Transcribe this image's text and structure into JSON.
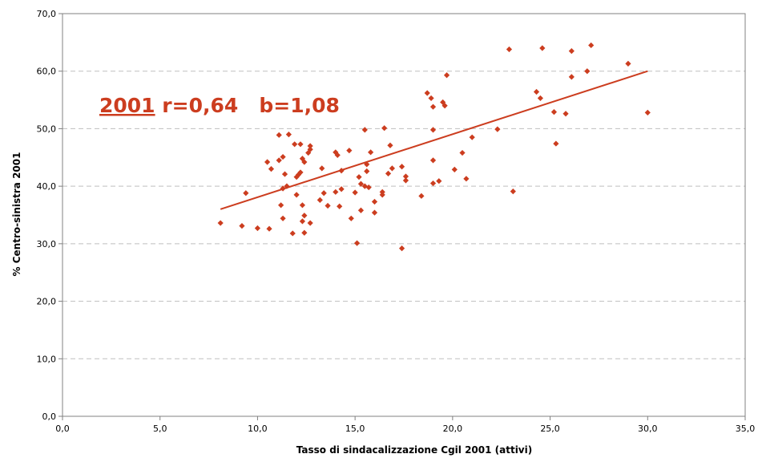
{
  "chart_data": {
    "type": "scatter",
    "title": "",
    "xlabel": "Tasso di sindacalizzazione Cgil 2001 (attivi)",
    "ylabel": "% Centro-sinistra 2001",
    "xlim": [
      0,
      35
    ],
    "ylim": [
      0,
      70
    ],
    "x_ticks": [
      "0,0",
      "5,0",
      "10,0",
      "15,0",
      "20,0",
      "25,0",
      "30,0",
      "35,0"
    ],
    "y_ticks": [
      "0,0",
      "10,0",
      "20,0",
      "30,0",
      "40,0",
      "50,0",
      "60,0",
      "70,0"
    ],
    "grid": "horizontal dashed",
    "legend": "none",
    "annotation": {
      "year": "2001",
      "stats": " r=0,64   b=1,08"
    },
    "color": "#cc3d1f",
    "trendline": {
      "x": [
        8.1,
        30.0
      ],
      "y": [
        36.0,
        60.0
      ]
    },
    "series": [
      {
        "points": [
          [
            8.1,
            33.6
          ],
          [
            9.2,
            33.1
          ],
          [
            9.4,
            38.8
          ],
          [
            10.0,
            32.7
          ],
          [
            10.5,
            44.2
          ],
          [
            10.6,
            32.6
          ],
          [
            10.7,
            43.0
          ],
          [
            11.1,
            48.9
          ],
          [
            11.1,
            44.5
          ],
          [
            11.2,
            36.7
          ],
          [
            11.3,
            34.4
          ],
          [
            11.3,
            45.1
          ],
          [
            11.4,
            42.1
          ],
          [
            11.3,
            39.6
          ],
          [
            11.5,
            40.0
          ],
          [
            11.6,
            49.0
          ],
          [
            11.8,
            31.8
          ],
          [
            11.9,
            47.3
          ],
          [
            12.0,
            38.5
          ],
          [
            12.0,
            41.6
          ],
          [
            12.1,
            42.0
          ],
          [
            12.2,
            47.3
          ],
          [
            12.2,
            42.4
          ],
          [
            12.3,
            44.8
          ],
          [
            12.3,
            36.7
          ],
          [
            12.3,
            33.9
          ],
          [
            12.4,
            34.9
          ],
          [
            12.4,
            31.9
          ],
          [
            12.4,
            44.2
          ],
          [
            12.6,
            45.8
          ],
          [
            12.7,
            46.4
          ],
          [
            12.7,
            47.0
          ],
          [
            12.7,
            33.6
          ],
          [
            13.2,
            37.6
          ],
          [
            13.3,
            43.1
          ],
          [
            13.4,
            38.8
          ],
          [
            13.6,
            36.6
          ],
          [
            14.0,
            39.0
          ],
          [
            14.0,
            45.9
          ],
          [
            14.1,
            45.4
          ],
          [
            14.2,
            36.5
          ],
          [
            14.3,
            39.5
          ],
          [
            14.3,
            42.7
          ],
          [
            14.7,
            46.2
          ],
          [
            14.8,
            34.4
          ],
          [
            15.0,
            38.9
          ],
          [
            15.1,
            30.1
          ],
          [
            15.2,
            41.6
          ],
          [
            15.3,
            40.4
          ],
          [
            15.3,
            35.8
          ],
          [
            15.5,
            49.8
          ],
          [
            15.5,
            40.0
          ],
          [
            15.6,
            42.6
          ],
          [
            15.6,
            43.8
          ],
          [
            15.7,
            39.8
          ],
          [
            15.8,
            45.9
          ],
          [
            16.0,
            37.3
          ],
          [
            16.0,
            35.4
          ],
          [
            16.4,
            39.0
          ],
          [
            16.4,
            38.5
          ],
          [
            16.5,
            50.1
          ],
          [
            16.7,
            42.2
          ],
          [
            16.8,
            47.1
          ],
          [
            16.9,
            43.1
          ],
          [
            17.4,
            43.4
          ],
          [
            17.4,
            29.2
          ],
          [
            17.6,
            41.0
          ],
          [
            17.6,
            41.7
          ],
          [
            18.4,
            38.3
          ],
          [
            18.7,
            56.2
          ],
          [
            18.9,
            55.3
          ],
          [
            19.0,
            53.8
          ],
          [
            19.0,
            49.8
          ],
          [
            19.0,
            44.5
          ],
          [
            19.0,
            40.5
          ],
          [
            19.3,
            40.9
          ],
          [
            19.5,
            54.6
          ],
          [
            19.6,
            54.0
          ],
          [
            19.7,
            59.3
          ],
          [
            20.1,
            42.9
          ],
          [
            20.5,
            45.8
          ],
          [
            20.7,
            41.3
          ],
          [
            21.0,
            48.5
          ],
          [
            22.3,
            49.9
          ],
          [
            22.9,
            63.8
          ],
          [
            23.1,
            39.1
          ],
          [
            24.3,
            56.4
          ],
          [
            24.5,
            55.3
          ],
          [
            24.6,
            64.0
          ],
          [
            25.2,
            52.9
          ],
          [
            25.3,
            47.4
          ],
          [
            25.8,
            52.6
          ],
          [
            26.1,
            63.5
          ],
          [
            26.1,
            59.0
          ],
          [
            26.9,
            60.0
          ],
          [
            27.1,
            64.5
          ],
          [
            29.0,
            61.3
          ],
          [
            30.0,
            52.8
          ]
        ]
      }
    ]
  }
}
